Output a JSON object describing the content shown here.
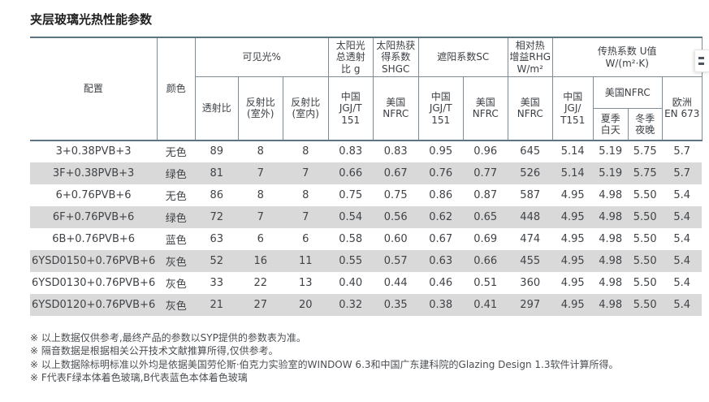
{
  "page": {
    "title": "夹层玻璃光热性能参数"
  },
  "colors": {
    "table_border": "#7d8c96",
    "table_rule_dark": "#5d7482",
    "row_stripe": "#d9d9d9",
    "title_text": "#212121",
    "body_text": "#404347"
  },
  "table": {
    "headers": {
      "config": "配置",
      "color": "颜色",
      "visible_light": "可见光%",
      "transmittance": "透射比",
      "reflectance_outdoor": "反射比\n(室外)",
      "reflectance_indoor": "反射比\n(室内)",
      "solar_g": "太阳光\n总透射\n比 g",
      "shgc": "太阳热获\n得系数\nSHGC",
      "sc": "遮阳系数SC",
      "rhg": "相对热\n增益RHG\nW/m²",
      "u_value": "传热系数 U值\nW/(m²·K)",
      "china_jgjt151": "中国\nJGJ/T\n151",
      "us_nfrc": "美国\nNFRC",
      "china_jgjt151_u": "中国\nJGJ/\nT151",
      "us_nfrc_u": "美国NFRC",
      "summer_day": "夏季\n白天",
      "winter_night": "冬季\n夜晚",
      "europe_en673": "欧洲\nEN 673"
    },
    "rows": [
      [
        "3+0.38PVB+3",
        "无色",
        "89",
        "8",
        "8",
        "0.83",
        "0.83",
        "0.95",
        "0.96",
        "645",
        "5.14",
        "5.19",
        "5.75",
        "5.7"
      ],
      [
        "3F+0.38PVB+3",
        "绿色",
        "81",
        "7",
        "7",
        "0.66",
        "0.67",
        "0.76",
        "0.77",
        "526",
        "5.14",
        "5.19",
        "5.75",
        "5.7"
      ],
      [
        "6+0.76PVB+6",
        "无色",
        "86",
        "8",
        "8",
        "0.75",
        "0.75",
        "0.86",
        "0.87",
        "587",
        "4.95",
        "4.98",
        "5.50",
        "5.4"
      ],
      [
        "6F+0.76PVB+6",
        "绿色",
        "72",
        "7",
        "7",
        "0.54",
        "0.56",
        "0.62",
        "0.65",
        "448",
        "4.95",
        "4.98",
        "5.50",
        "5.4"
      ],
      [
        "6B+0.76PVB+6",
        "蓝色",
        "63",
        "6",
        "6",
        "0.58",
        "0.60",
        "0.67",
        "0.69",
        "474",
        "4.95",
        "4.98",
        "5.50",
        "5.4"
      ],
      [
        "6YSD0150+0.76PVB+6",
        "灰色",
        "52",
        "16",
        "11",
        "0.55",
        "0.57",
        "0.63",
        "0.66",
        "455",
        "4.95",
        "4.98",
        "5.50",
        "5.4"
      ],
      [
        "6YSD0130+0.76PVB+6",
        "灰色",
        "33",
        "22",
        "13",
        "0.40",
        "0.44",
        "0.46",
        "0.51",
        "360",
        "4.95",
        "4.98",
        "5.50",
        "5.4"
      ],
      [
        "6YSD0120+0.76PVB+6",
        "灰色",
        "21",
        "27",
        "20",
        "0.32",
        "0.35",
        "0.38",
        "0.41",
        "297",
        "4.95",
        "4.98",
        "5.50",
        "5.4"
      ]
    ]
  },
  "footnotes": [
    "※ 以上数据仅供参考,最终产品的参数以SYP提供的参数表为准。",
    "※ 隔音数据是根据相关公开技术文献推算所得,仅供参考。",
    "※ 以上数据除标明标准以外均是依据美国劳伦斯·伯克力实验室的WINDOW 6.3和中国广东建科院的Glazing Design 1.3软件计算所得。",
    "※ F代表F绿本体着色玻璃,B代表蓝色本体着色玻璃"
  ],
  "floating_widget": {
    "icon": "handle-dots-icon"
  }
}
